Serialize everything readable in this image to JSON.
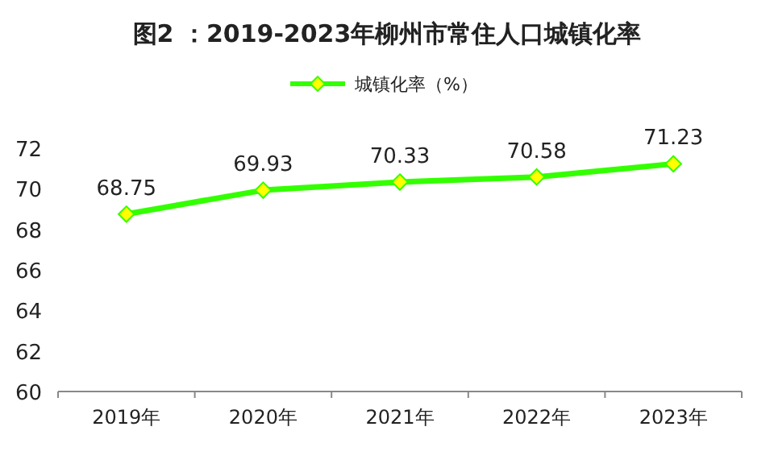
{
  "chart_data": {
    "type": "line",
    "title": "图2 ：2019-2023年柳州市常住人口城镇化率",
    "categories": [
      "2019年",
      "2020年",
      "2021年",
      "2022年",
      "2023年"
    ],
    "series": [
      {
        "name": "城镇化率（%）",
        "color": "#33ff00",
        "values": [
          68.75,
          69.93,
          70.33,
          70.58,
          71.23
        ]
      }
    ],
    "ylim": [
      60,
      72
    ],
    "yticks": [
      60,
      62,
      64,
      66,
      68,
      70,
      72
    ],
    "data_labels": true,
    "legend": "top",
    "marker": "diamond",
    "grid": false,
    "line_style": "solid"
  }
}
